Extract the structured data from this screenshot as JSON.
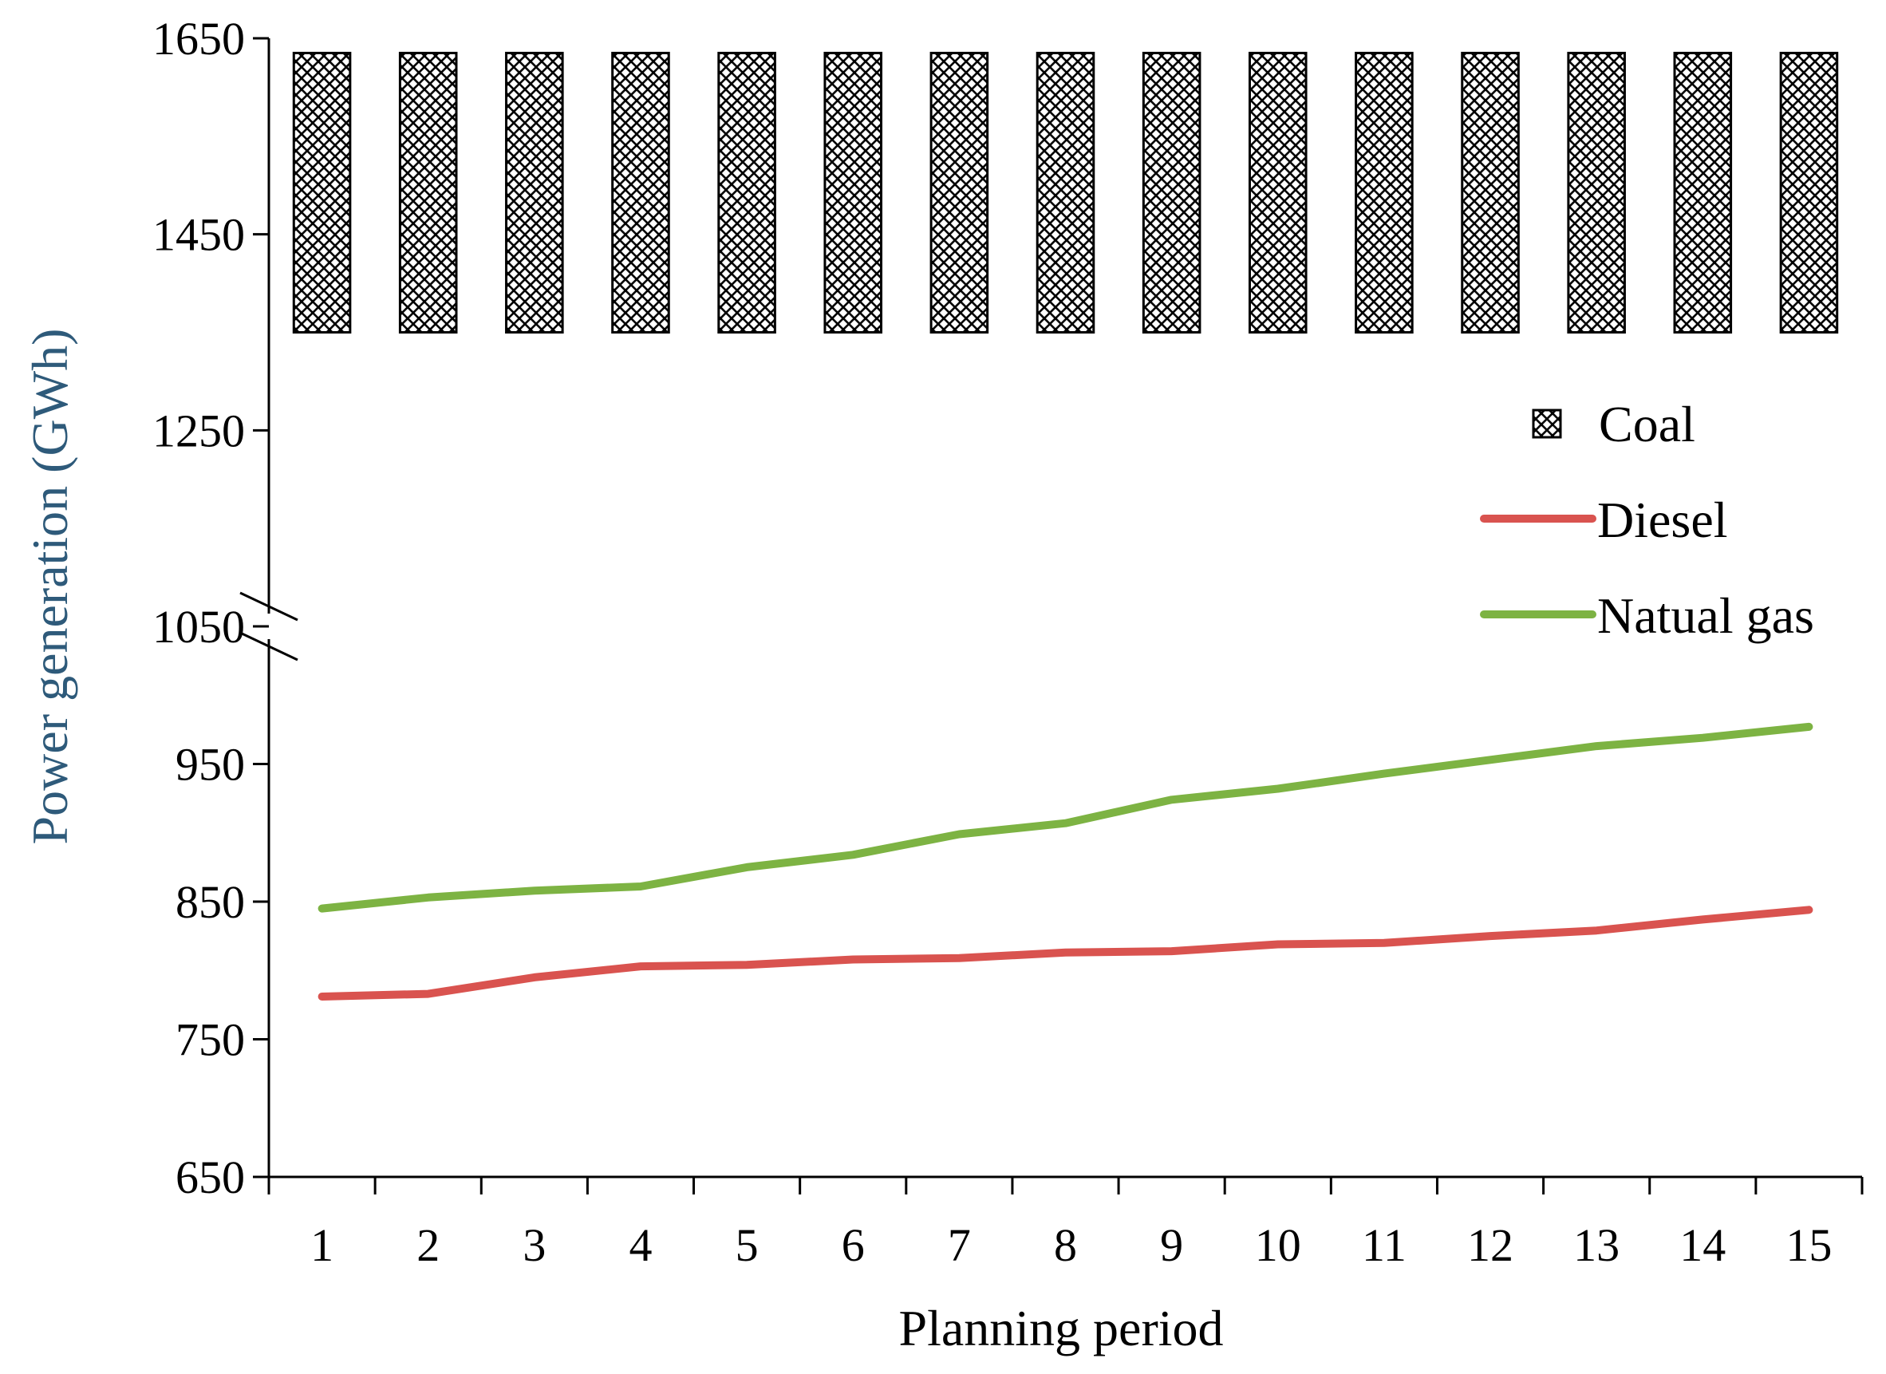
{
  "chart_data": {
    "type": "bar",
    "title": "",
    "xlabel": "Planning period",
    "ylabel": "Power generation (GWh)",
    "categories": [
      "1",
      "2",
      "3",
      "4",
      "5",
      "6",
      "7",
      "8",
      "9",
      "10",
      "11",
      "12",
      "13",
      "14",
      "15"
    ],
    "yticks_lower": [
      "650",
      "750",
      "850",
      "950",
      "1050"
    ],
    "yticks_upper": [
      "1250",
      "1450",
      "1650"
    ],
    "ylim_lower": [
      650,
      1050
    ],
    "ylim_upper": [
      1050,
      1650
    ],
    "axis_break": true,
    "series": [
      {
        "name": "Coal",
        "kind": "floating-bar",
        "pattern": "crosshatch",
        "values": [
          [
            1350,
            1635
          ],
          [
            1350,
            1635
          ],
          [
            1350,
            1635
          ],
          [
            1350,
            1635
          ],
          [
            1350,
            1635
          ],
          [
            1350,
            1635
          ],
          [
            1350,
            1635
          ],
          [
            1350,
            1635
          ],
          [
            1350,
            1635
          ],
          [
            1350,
            1635
          ],
          [
            1350,
            1635
          ],
          [
            1350,
            1635
          ],
          [
            1350,
            1635
          ],
          [
            1350,
            1635
          ],
          [
            1350,
            1635
          ]
        ]
      },
      {
        "name": "Diesel",
        "kind": "line",
        "color": "#d9534f",
        "values": [
          781,
          783,
          795,
          803,
          804,
          808,
          809,
          813,
          814,
          819,
          820,
          825,
          829,
          837,
          844
        ]
      },
      {
        "name": "Natual gas",
        "kind": "line",
        "color": "#7db343",
        "values": [
          845,
          853,
          858,
          861,
          875,
          884,
          899,
          907,
          924,
          932,
          943,
          953,
          963,
          969,
          977
        ]
      }
    ],
    "legend": {
      "position": "right",
      "entries": [
        "Coal",
        "Diesel",
        "Natual gas"
      ]
    },
    "colors": {
      "axis": "#000000",
      "ylabel": "#2e5a7a",
      "diesel": "#d9534f",
      "gas": "#7db343"
    }
  }
}
